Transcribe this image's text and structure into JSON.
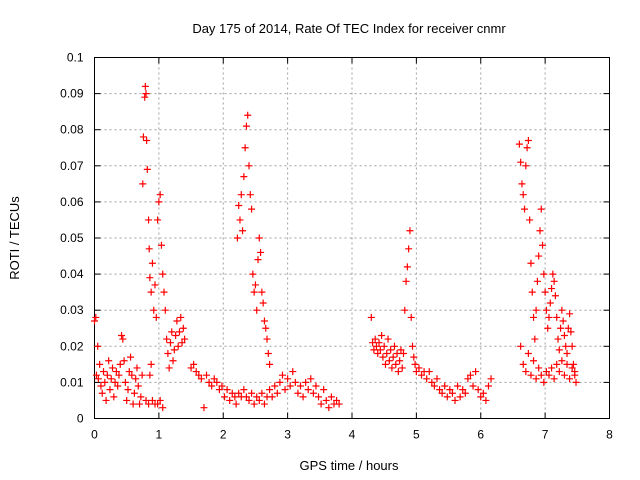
{
  "chart_data": {
    "type": "scatter",
    "title": "Day 175 of 2014, Rate Of TEC Index for receiver cnmr",
    "xlabel": "GPS time / hours",
    "ylabel": "ROTI / TECUs",
    "xlim": [
      0,
      8
    ],
    "ylim": [
      0,
      0.1
    ],
    "xticks": [
      0,
      1,
      2,
      3,
      4,
      5,
      6,
      7,
      8
    ],
    "xtick_labels": [
      "0",
      "1",
      "2",
      "3",
      "4",
      "5",
      "6",
      "7",
      "8"
    ],
    "yticks": [
      0,
      0.01,
      0.02,
      0.03,
      0.04,
      0.05,
      0.06,
      0.07,
      0.08,
      0.09,
      0.1
    ],
    "ytick_labels": [
      "0",
      "0.01",
      "0.02",
      "0.03",
      "0.04",
      "0.05",
      "0.06",
      "0.07",
      "0.08",
      "0.09",
      "0.1"
    ],
    "grid": true,
    "marker": "+",
    "color": "#ff0000",
    "series": [
      {
        "name": "ROTI",
        "points": [
          [
            0.0,
            0.027
          ],
          [
            0.02,
            0.028
          ],
          [
            0.03,
            0.012
          ],
          [
            0.05,
            0.02
          ],
          [
            0.06,
            0.011
          ],
          [
            0.08,
            0.015
          ],
          [
            0.1,
            0.009
          ],
          [
            0.12,
            0.007
          ],
          [
            0.14,
            0.013
          ],
          [
            0.16,
            0.01
          ],
          [
            0.18,
            0.005
          ],
          [
            0.2,
            0.012
          ],
          [
            0.22,
            0.016
          ],
          [
            0.24,
            0.008
          ],
          [
            0.26,
            0.011
          ],
          [
            0.28,
            0.014
          ],
          [
            0.3,
            0.006
          ],
          [
            0.32,
            0.01
          ],
          [
            0.34,
            0.013
          ],
          [
            0.36,
            0.009
          ],
          [
            0.38,
            0.012
          ],
          [
            0.4,
            0.015
          ],
          [
            0.42,
            0.023
          ],
          [
            0.44,
            0.022
          ],
          [
            0.46,
            0.016
          ],
          [
            0.48,
            0.01
          ],
          [
            0.5,
            0.005
          ],
          [
            0.52,
            0.008
          ],
          [
            0.54,
            0.013
          ],
          [
            0.56,
            0.017
          ],
          [
            0.58,
            0.012
          ],
          [
            0.6,
            0.004
          ],
          [
            0.62,
            0.007
          ],
          [
            0.64,
            0.011
          ],
          [
            0.66,
            0.014
          ],
          [
            0.68,
            0.009
          ],
          [
            0.7,
            0.004
          ],
          [
            0.72,
            0.006
          ],
          [
            0.74,
            0.012
          ],
          [
            0.75,
            0.065
          ],
          [
            0.76,
            0.078
          ],
          [
            0.78,
            0.089
          ],
          [
            0.79,
            0.092
          ],
          [
            0.8,
            0.09
          ],
          [
            0.81,
            0.077
          ],
          [
            0.82,
            0.069
          ],
          [
            0.84,
            0.055
          ],
          [
            0.85,
            0.047
          ],
          [
            0.86,
            0.039
          ],
          [
            0.88,
            0.035
          ],
          [
            0.9,
            0.043
          ],
          [
            0.92,
            0.03
          ],
          [
            0.94,
            0.037
          ],
          [
            0.96,
            0.028
          ],
          [
            0.98,
            0.055
          ],
          [
            1.0,
            0.06
          ],
          [
            1.02,
            0.062
          ],
          [
            1.04,
            0.048
          ],
          [
            1.06,
            0.04
          ],
          [
            1.08,
            0.035
          ],
          [
            1.1,
            0.03
          ],
          [
            0.8,
            0.005
          ],
          [
            0.84,
            0.004
          ],
          [
            0.86,
            0.012
          ],
          [
            0.88,
            0.015
          ],
          [
            0.9,
            0.005
          ],
          [
            0.94,
            0.004
          ],
          [
            0.98,
            0.004
          ],
          [
            1.02,
            0.005
          ],
          [
            1.06,
            0.003
          ],
          [
            1.12,
            0.022
          ],
          [
            1.14,
            0.018
          ],
          [
            1.16,
            0.014
          ],
          [
            1.18,
            0.021
          ],
          [
            1.2,
            0.024
          ],
          [
            1.22,
            0.016
          ],
          [
            1.24,
            0.019
          ],
          [
            1.26,
            0.023
          ],
          [
            1.28,
            0.027
          ],
          [
            1.3,
            0.02
          ],
          [
            1.32,
            0.024
          ],
          [
            1.34,
            0.028
          ],
          [
            1.36,
            0.021
          ],
          [
            1.38,
            0.025
          ],
          [
            1.4,
            0.022
          ],
          [
            1.5,
            0.014
          ],
          [
            1.54,
            0.015
          ],
          [
            1.58,
            0.013
          ],
          [
            1.62,
            0.012
          ],
          [
            1.66,
            0.011
          ],
          [
            1.7,
            0.003
          ],
          [
            1.74,
            0.012
          ],
          [
            1.78,
            0.01
          ],
          [
            1.82,
            0.009
          ],
          [
            1.86,
            0.011
          ],
          [
            1.9,
            0.01
          ],
          [
            1.94,
            0.008
          ],
          [
            1.98,
            0.009
          ],
          [
            2.02,
            0.006
          ],
          [
            2.06,
            0.008
          ],
          [
            2.1,
            0.005
          ],
          [
            2.14,
            0.007
          ],
          [
            2.18,
            0.006
          ],
          [
            2.2,
            0.004
          ],
          [
            2.22,
            0.05
          ],
          [
            2.24,
            0.059
          ],
          [
            2.26,
            0.055
          ],
          [
            2.28,
            0.062
          ],
          [
            2.3,
            0.052
          ],
          [
            2.32,
            0.067
          ],
          [
            2.34,
            0.075
          ],
          [
            2.36,
            0.081
          ],
          [
            2.38,
            0.084
          ],
          [
            2.4,
            0.07
          ],
          [
            2.42,
            0.062
          ],
          [
            2.44,
            0.058
          ],
          [
            2.46,
            0.04
          ],
          [
            2.48,
            0.035
          ],
          [
            2.5,
            0.037
          ],
          [
            2.52,
            0.03
          ],
          [
            2.54,
            0.044
          ],
          [
            2.56,
            0.05
          ],
          [
            2.58,
            0.046
          ],
          [
            2.6,
            0.035
          ],
          [
            2.62,
            0.032
          ],
          [
            2.64,
            0.027
          ],
          [
            2.66,
            0.025
          ],
          [
            2.68,
            0.022
          ],
          [
            2.7,
            0.018
          ],
          [
            2.72,
            0.015
          ],
          [
            2.24,
            0.007
          ],
          [
            2.28,
            0.006
          ],
          [
            2.32,
            0.008
          ],
          [
            2.36,
            0.006
          ],
          [
            2.4,
            0.005
          ],
          [
            2.44,
            0.007
          ],
          [
            2.48,
            0.004
          ],
          [
            2.52,
            0.006
          ],
          [
            2.56,
            0.005
          ],
          [
            2.6,
            0.007
          ],
          [
            2.64,
            0.004
          ],
          [
            2.68,
            0.006
          ],
          [
            2.72,
            0.008
          ],
          [
            2.76,
            0.006
          ],
          [
            2.8,
            0.009
          ],
          [
            2.84,
            0.007
          ],
          [
            2.88,
            0.01
          ],
          [
            2.92,
            0.012
          ],
          [
            2.96,
            0.008
          ],
          [
            3.0,
            0.011
          ],
          [
            3.04,
            0.009
          ],
          [
            3.08,
            0.013
          ],
          [
            3.12,
            0.01
          ],
          [
            3.16,
            0.007
          ],
          [
            3.2,
            0.009
          ],
          [
            3.24,
            0.006
          ],
          [
            3.28,
            0.01
          ],
          [
            3.32,
            0.008
          ],
          [
            3.36,
            0.011
          ],
          [
            3.4,
            0.007
          ],
          [
            3.44,
            0.009
          ],
          [
            3.48,
            0.006
          ],
          [
            3.52,
            0.004
          ],
          [
            3.56,
            0.008
          ],
          [
            3.6,
            0.005
          ],
          [
            3.64,
            0.003
          ],
          [
            3.68,
            0.006
          ],
          [
            3.72,
            0.004
          ],
          [
            3.76,
            0.005
          ],
          [
            3.8,
            0.004
          ],
          [
            4.3,
            0.028
          ],
          [
            4.32,
            0.021
          ],
          [
            4.34,
            0.019
          ],
          [
            4.36,
            0.022
          ],
          [
            4.38,
            0.02
          ],
          [
            4.4,
            0.018
          ],
          [
            4.42,
            0.021
          ],
          [
            4.44,
            0.019
          ],
          [
            4.46,
            0.023
          ],
          [
            4.48,
            0.017
          ],
          [
            4.5,
            0.02
          ],
          [
            4.52,
            0.015
          ],
          [
            4.54,
            0.018
          ],
          [
            4.56,
            0.022
          ],
          [
            4.58,
            0.016
          ],
          [
            4.6,
            0.019
          ],
          [
            4.62,
            0.014
          ],
          [
            4.64,
            0.017
          ],
          [
            4.66,
            0.02
          ],
          [
            4.68,
            0.015
          ],
          [
            4.7,
            0.018
          ],
          [
            4.72,
            0.013
          ],
          [
            4.74,
            0.016
          ],
          [
            4.76,
            0.019
          ],
          [
            4.78,
            0.014
          ],
          [
            4.8,
            0.018
          ],
          [
            4.82,
            0.03
          ],
          [
            4.84,
            0.038
          ],
          [
            4.86,
            0.042
          ],
          [
            4.88,
            0.047
          ],
          [
            4.9,
            0.052
          ],
          [
            4.92,
            0.028
          ],
          [
            4.94,
            0.02
          ],
          [
            4.96,
            0.017
          ],
          [
            4.98,
            0.015
          ],
          [
            5.0,
            0.013
          ],
          [
            5.04,
            0.014
          ],
          [
            5.08,
            0.012
          ],
          [
            5.12,
            0.013
          ],
          [
            5.16,
            0.011
          ],
          [
            5.2,
            0.013
          ],
          [
            5.24,
            0.01
          ],
          [
            5.28,
            0.009
          ],
          [
            5.32,
            0.011
          ],
          [
            5.36,
            0.008
          ],
          [
            5.4,
            0.007
          ],
          [
            5.44,
            0.009
          ],
          [
            5.48,
            0.006
          ],
          [
            5.52,
            0.008
          ],
          [
            5.56,
            0.007
          ],
          [
            5.6,
            0.005
          ],
          [
            5.64,
            0.009
          ],
          [
            5.68,
            0.006
          ],
          [
            5.72,
            0.008
          ],
          [
            5.76,
            0.007
          ],
          [
            5.8,
            0.011
          ],
          [
            5.84,
            0.012
          ],
          [
            5.88,
            0.009
          ],
          [
            5.92,
            0.013
          ],
          [
            5.96,
            0.008
          ],
          [
            6.0,
            0.006
          ],
          [
            6.04,
            0.007
          ],
          [
            6.08,
            0.005
          ],
          [
            6.12,
            0.009
          ],
          [
            6.16,
            0.011
          ],
          [
            6.6,
            0.076
          ],
          [
            6.62,
            0.071
          ],
          [
            6.64,
            0.065
          ],
          [
            6.66,
            0.062
          ],
          [
            6.68,
            0.058
          ],
          [
            6.7,
            0.07
          ],
          [
            6.72,
            0.075
          ],
          [
            6.74,
            0.077
          ],
          [
            6.76,
            0.055
          ],
          [
            6.78,
            0.043
          ],
          [
            6.8,
            0.035
          ],
          [
            6.82,
            0.028
          ],
          [
            6.84,
            0.022
          ],
          [
            6.86,
            0.03
          ],
          [
            6.88,
            0.038
          ],
          [
            6.9,
            0.045
          ],
          [
            6.92,
            0.052
          ],
          [
            6.94,
            0.058
          ],
          [
            6.96,
            0.048
          ],
          [
            6.98,
            0.04
          ],
          [
            7.0,
            0.035
          ],
          [
            7.02,
            0.03
          ],
          [
            7.04,
            0.025
          ],
          [
            7.06,
            0.028
          ],
          [
            7.08,
            0.032
          ],
          [
            7.1,
            0.036
          ],
          [
            7.12,
            0.04
          ],
          [
            7.14,
            0.038
          ],
          [
            7.16,
            0.034
          ],
          [
            7.18,
            0.028
          ],
          [
            7.2,
            0.022
          ],
          [
            7.22,
            0.019
          ],
          [
            7.24,
            0.025
          ],
          [
            7.26,
            0.03
          ],
          [
            7.28,
            0.027
          ],
          [
            7.3,
            0.023
          ],
          [
            7.32,
            0.02
          ],
          [
            7.34,
            0.018
          ],
          [
            7.36,
            0.025
          ],
          [
            7.38,
            0.029
          ],
          [
            7.4,
            0.024
          ],
          [
            7.42,
            0.02
          ],
          [
            7.44,
            0.015
          ],
          [
            7.46,
            0.012
          ],
          [
            7.48,
            0.01
          ],
          [
            6.62,
            0.02
          ],
          [
            6.66,
            0.015
          ],
          [
            6.7,
            0.013
          ],
          [
            6.74,
            0.018
          ],
          [
            6.78,
            0.012
          ],
          [
            6.82,
            0.016
          ],
          [
            6.86,
            0.011
          ],
          [
            6.9,
            0.014
          ],
          [
            6.94,
            0.012
          ],
          [
            6.98,
            0.01
          ],
          [
            7.02,
            0.013
          ],
          [
            7.06,
            0.012
          ],
          [
            7.1,
            0.014
          ],
          [
            7.14,
            0.011
          ],
          [
            7.18,
            0.015
          ],
          [
            7.22,
            0.013
          ],
          [
            7.26,
            0.016
          ],
          [
            7.3,
            0.012
          ],
          [
            7.34,
            0.015
          ],
          [
            7.38,
            0.011
          ],
          [
            7.42,
            0.014
          ],
          [
            7.46,
            0.013
          ]
        ]
      }
    ]
  }
}
